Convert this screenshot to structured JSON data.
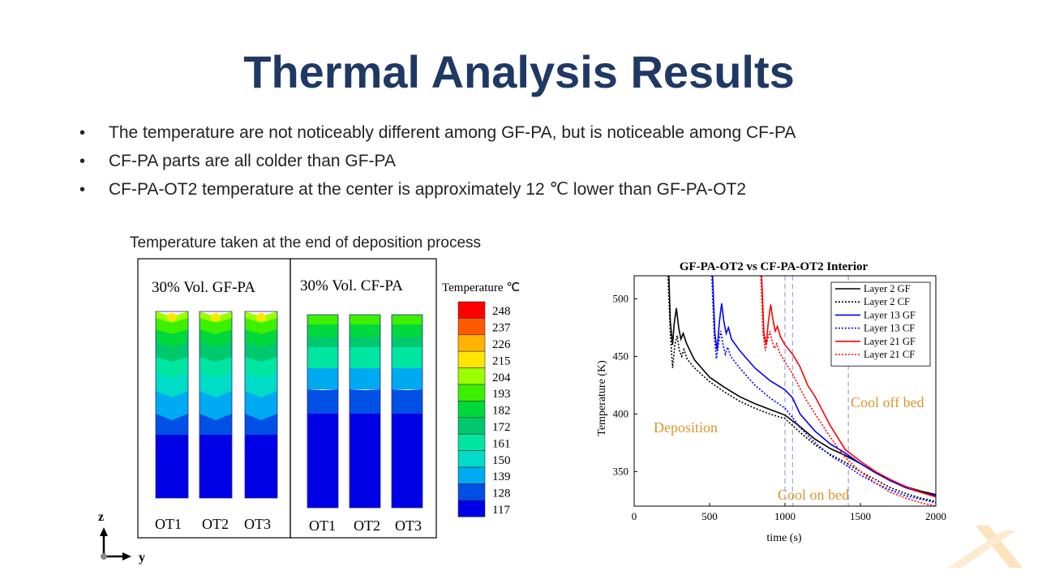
{
  "slide": {
    "title": "Thermal Analysis Results",
    "bullets": [
      "The temperature are not noticeably different among GF-PA, but is noticeable among CF-PA",
      "CF-PA parts are all colder than GF-PA",
      "CF-PA-OT2 temperature at the center is approximately 12 ℃ lower than GF-PA-OT2"
    ],
    "caption": "Temperature  taken at the end of deposition process"
  },
  "contour": {
    "panels": [
      {
        "title": "30% Vol. GF-PA",
        "labels": [
          "OT1",
          "OT2",
          "OT3"
        ]
      },
      {
        "title": "30% Vol. CF-PA",
        "labels": [
          "OT1",
          "OT2",
          "OT3"
        ]
      }
    ],
    "legend_title": "Temperature ℃",
    "legend_values": [
      "248",
      "237",
      "226",
      "215",
      "204",
      "193",
      "182",
      "172",
      "161",
      "150",
      "139",
      "128",
      "117"
    ],
    "legend_colors": [
      "#ff0000",
      "#ff5a00",
      "#ffb400",
      "#ffe600",
      "#9bff00",
      "#3cf000",
      "#00d83c",
      "#00c86e",
      "#00e6a0",
      "#00dcc8",
      "#00aaf0",
      "#0050e6",
      "#0000e6"
    ],
    "axis_z": "z",
    "axis_y": "y"
  },
  "chart_data": {
    "type": "line",
    "title": "GF-PA-OT2 vs CF-PA-OT2 Interior",
    "xlabel": "time (s)",
    "ylabel": "Temperature (K)",
    "xlim": [
      0,
      2000
    ],
    "ylim": [
      320,
      520
    ],
    "xticks": [
      0,
      500,
      1000,
      1500,
      2000
    ],
    "yticks": [
      350,
      400,
      450,
      500
    ],
    "grid": false,
    "legend_position": "top-right",
    "annotations": [
      "Deposition",
      "Cool on bed",
      "Cool off bed"
    ],
    "vlines": [
      1000,
      1050,
      1420
    ],
    "series": [
      {
        "name": "Layer 2 GF",
        "color": "#000000",
        "dashed": false,
        "points": [
          [
            230,
            520
          ],
          [
            240,
            480
          ],
          [
            255,
            460
          ],
          [
            265,
            478
          ],
          [
            280,
            492
          ],
          [
            295,
            475
          ],
          [
            310,
            465
          ],
          [
            325,
            470
          ],
          [
            345,
            462
          ],
          [
            370,
            455
          ],
          [
            400,
            447
          ],
          [
            500,
            432
          ],
          [
            600,
            423
          ],
          [
            700,
            415
          ],
          [
            800,
            409
          ],
          [
            900,
            404
          ],
          [
            1000,
            399
          ],
          [
            1100,
            389
          ],
          [
            1200,
            378
          ],
          [
            1300,
            370
          ],
          [
            1400,
            364
          ],
          [
            1500,
            357
          ],
          [
            1600,
            349
          ],
          [
            1700,
            342
          ],
          [
            1800,
            337
          ],
          [
            1900,
            333
          ],
          [
            2000,
            330
          ]
        ]
      },
      {
        "name": "Layer 2 CF",
        "color": "#000000",
        "dashed": true,
        "points": [
          [
            225,
            520
          ],
          [
            240,
            470
          ],
          [
            255,
            440
          ],
          [
            270,
            460
          ],
          [
            285,
            468
          ],
          [
            300,
            455
          ],
          [
            315,
            450
          ],
          [
            330,
            456
          ],
          [
            350,
            448
          ],
          [
            380,
            443
          ],
          [
            400,
            440
          ],
          [
            500,
            428
          ],
          [
            600,
            419
          ],
          [
            700,
            411
          ],
          [
            800,
            405
          ],
          [
            900,
            400
          ],
          [
            1000,
            396
          ],
          [
            1100,
            384
          ],
          [
            1200,
            373
          ],
          [
            1300,
            365
          ],
          [
            1400,
            358
          ],
          [
            1500,
            350
          ],
          [
            1600,
            343
          ],
          [
            1700,
            336
          ],
          [
            1800,
            331
          ],
          [
            1900,
            327
          ],
          [
            2000,
            324
          ]
        ]
      },
      {
        "name": "Layer 13 GF",
        "color": "#0000ff",
        "dashed": false,
        "points": [
          [
            520,
            520
          ],
          [
            535,
            470
          ],
          [
            550,
            455
          ],
          [
            565,
            480
          ],
          [
            580,
            496
          ],
          [
            595,
            480
          ],
          [
            610,
            470
          ],
          [
            625,
            475
          ],
          [
            645,
            465
          ],
          [
            700,
            455
          ],
          [
            800,
            440
          ],
          [
            900,
            429
          ],
          [
            1000,
            421
          ],
          [
            1050,
            414
          ],
          [
            1100,
            400
          ],
          [
            1200,
            385
          ],
          [
            1300,
            374
          ],
          [
            1400,
            366
          ],
          [
            1500,
            357
          ],
          [
            1600,
            349
          ],
          [
            1700,
            342
          ],
          [
            1800,
            336
          ],
          [
            1900,
            332
          ],
          [
            2000,
            329
          ]
        ]
      },
      {
        "name": "Layer 13 CF",
        "color": "#0000ff",
        "dashed": true,
        "points": [
          [
            515,
            520
          ],
          [
            530,
            470
          ],
          [
            545,
            448
          ],
          [
            560,
            462
          ],
          [
            575,
            472
          ],
          [
            590,
            460
          ],
          [
            605,
            452
          ],
          [
            620,
            458
          ],
          [
            640,
            450
          ],
          [
            700,
            440
          ],
          [
            800,
            425
          ],
          [
            900,
            414
          ],
          [
            1000,
            405
          ],
          [
            1050,
            397
          ],
          [
            1100,
            388
          ],
          [
            1200,
            375
          ],
          [
            1300,
            364
          ],
          [
            1400,
            356
          ],
          [
            1500,
            347
          ],
          [
            1600,
            340
          ],
          [
            1700,
            334
          ],
          [
            1800,
            329
          ],
          [
            1900,
            326
          ],
          [
            2000,
            323
          ]
        ]
      },
      {
        "name": "Layer 21 GF",
        "color": "#ff0000",
        "dashed": false,
        "points": [
          [
            845,
            520
          ],
          [
            860,
            470
          ],
          [
            875,
            460
          ],
          [
            890,
            480
          ],
          [
            905,
            495
          ],
          [
            920,
            482
          ],
          [
            935,
            472
          ],
          [
            950,
            476
          ],
          [
            970,
            467
          ],
          [
            1000,
            460
          ],
          [
            1050,
            452
          ],
          [
            1100,
            441
          ],
          [
            1150,
            425
          ],
          [
            1200,
            415
          ],
          [
            1300,
            390
          ],
          [
            1400,
            369
          ],
          [
            1500,
            359
          ],
          [
            1600,
            350
          ],
          [
            1700,
            343
          ],
          [
            1800,
            337
          ],
          [
            1900,
            332
          ],
          [
            2000,
            328
          ]
        ]
      },
      {
        "name": "Layer 21 CF",
        "color": "#ff0000",
        "dashed": true,
        "points": [
          [
            840,
            520
          ],
          [
            855,
            470
          ],
          [
            870,
            455
          ],
          [
            885,
            465
          ],
          [
            900,
            472
          ],
          [
            915,
            463
          ],
          [
            930,
            457
          ],
          [
            945,
            461
          ],
          [
            965,
            453
          ],
          [
            1000,
            445
          ],
          [
            1050,
            435
          ],
          [
            1100,
            422
          ],
          [
            1150,
            410
          ],
          [
            1200,
            400
          ],
          [
            1300,
            380
          ],
          [
            1400,
            362
          ],
          [
            1500,
            350
          ],
          [
            1600,
            340
          ],
          [
            1700,
            332
          ],
          [
            1800,
            327
          ],
          [
            1900,
            323
          ],
          [
            2000,
            320
          ]
        ]
      }
    ]
  }
}
